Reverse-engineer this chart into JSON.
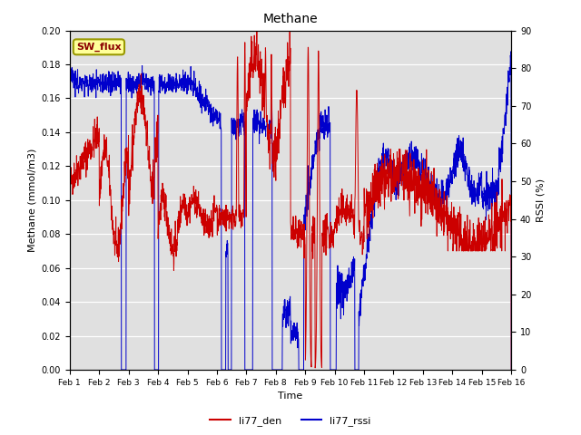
{
  "title": "Methane",
  "xlabel": "Time",
  "ylabel_left": "Methane (mmol/m3)",
  "ylabel_right": "RSSI (%)",
  "ylim_left": [
    0.0,
    0.2
  ],
  "ylim_right": [
    0,
    90
  ],
  "yticks_left": [
    0.0,
    0.02,
    0.04,
    0.06,
    0.08,
    0.1,
    0.12,
    0.14,
    0.16,
    0.18,
    0.2
  ],
  "yticks_right": [
    0,
    10,
    20,
    30,
    40,
    50,
    60,
    70,
    80,
    90
  ],
  "xtick_labels": [
    "Feb 1",
    "Feb 2",
    "Feb 3",
    "Feb 4",
    "Feb 5",
    "Feb 6",
    "Feb 7",
    "Feb 8",
    "Feb 9",
    "Feb 10",
    "Feb 11",
    "Feb 12",
    "Feb 13",
    "Feb 14",
    "Feb 15",
    "Feb 16"
  ],
  "color_den": "#cc0000",
  "color_rssi": "#0000cc",
  "bg_color": "#e0e0e0",
  "legend_box_label": "SW_flux",
  "legend_box_facecolor": "#ffff99",
  "legend_box_edgecolor": "#999900",
  "n_points": 2000
}
